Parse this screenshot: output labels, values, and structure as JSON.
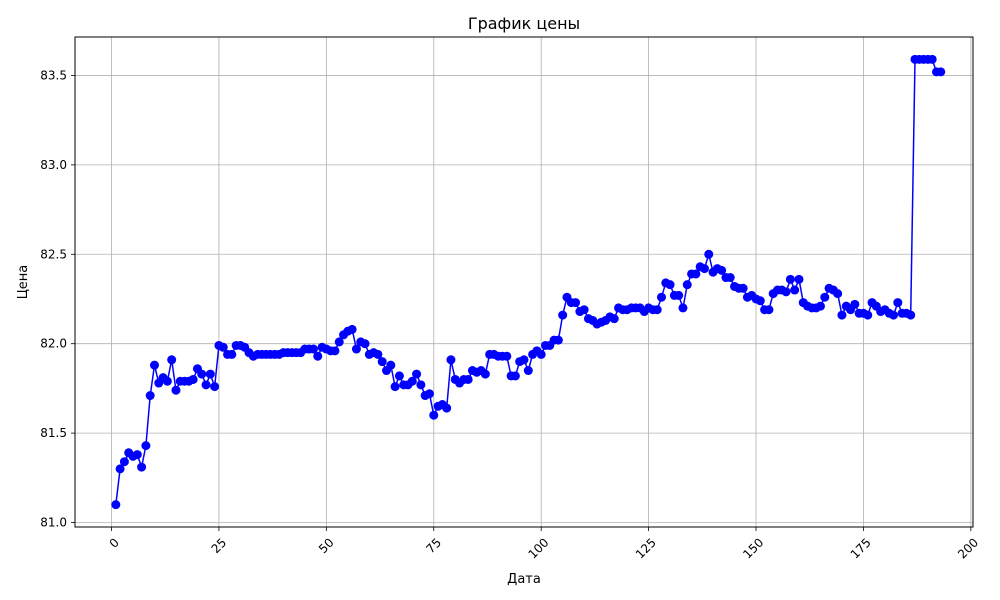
{
  "chart_data": {
    "type": "line",
    "title": "График цены",
    "xlabel": "Дата",
    "ylabel": "Цена",
    "xlim": [
      -8.5,
      200.5
    ],
    "ylim": [
      80.975,
      83.715
    ],
    "x_ticks": [
      0,
      25,
      50,
      75,
      100,
      125,
      150,
      175,
      200
    ],
    "y_ticks": [
      81.0,
      81.5,
      82.0,
      82.5,
      83.0,
      83.5
    ],
    "x_tick_labels": [
      "0",
      "25",
      "50",
      "75",
      "100",
      "125",
      "150",
      "175",
      "200"
    ],
    "y_tick_labels": [
      "81.0",
      "81.5",
      "82.0",
      "82.5",
      "83.0",
      "83.5"
    ],
    "grid": true,
    "marker": "circle",
    "series": [
      {
        "color": "#0000ff",
        "x_start": 1,
        "values": [
          81.1,
          81.3,
          81.34,
          81.39,
          81.37,
          81.38,
          81.31,
          81.43,
          81.71,
          81.88,
          81.78,
          81.81,
          81.79,
          81.91,
          81.74,
          81.79,
          81.79,
          81.79,
          81.8,
          81.86,
          81.83,
          81.77,
          81.83,
          81.76,
          81.99,
          81.98,
          81.94,
          81.94,
          81.99,
          81.99,
          81.98,
          81.95,
          81.93,
          81.94,
          81.94,
          81.94,
          81.94,
          81.94,
          81.94,
          81.95,
          81.95,
          81.95,
          81.95,
          81.95,
          81.97,
          81.97,
          81.97,
          81.93,
          81.98,
          81.97,
          81.96,
          81.96,
          82.01,
          82.05,
          82.07,
          82.08,
          81.97,
          82.01,
          82.0,
          81.94,
          81.95,
          81.94,
          81.9,
          81.85,
          81.88,
          81.76,
          81.82,
          81.77,
          81.77,
          81.79,
          81.83,
          81.77,
          81.71,
          81.72,
          81.6,
          81.65,
          81.66,
          81.64,
          81.91,
          81.8,
          81.78,
          81.8,
          81.8,
          81.85,
          81.84,
          81.85,
          81.83,
          81.94,
          81.94,
          81.93,
          81.93,
          81.93,
          81.82,
          81.82,
          81.9,
          81.91,
          81.85,
          81.94,
          81.96,
          81.94,
          81.99,
          81.99,
          82.02,
          82.02,
          82.16,
          82.26,
          82.23,
          82.23,
          82.18,
          82.19,
          82.14,
          82.13,
          82.11,
          82.12,
          82.13,
          82.15,
          82.14,
          82.2,
          82.19,
          82.19,
          82.2,
          82.2,
          82.2,
          82.18,
          82.2,
          82.19,
          82.19,
          82.26,
          82.34,
          82.33,
          82.27,
          82.27,
          82.2,
          82.33,
          82.39,
          82.39,
          82.43,
          82.42,
          82.5,
          82.4,
          82.42,
          82.41,
          82.37,
          82.37,
          82.32,
          82.31,
          82.31,
          82.26,
          82.27,
          82.25,
          82.24,
          82.19,
          82.19,
          82.28,
          82.3,
          82.3,
          82.29,
          82.36,
          82.3,
          82.36,
          82.23,
          82.21,
          82.2,
          82.2,
          82.21,
          82.26,
          82.31,
          82.3,
          82.28,
          82.16,
          82.21,
          82.19,
          82.22,
          82.17,
          82.17,
          82.16,
          82.23,
          82.21,
          82.18,
          82.19,
          82.17,
          82.16,
          82.23,
          82.17,
          82.17,
          82.16,
          83.59,
          83.59,
          83.59,
          83.59,
          83.59,
          83.52,
          83.52
        ]
      }
    ]
  }
}
